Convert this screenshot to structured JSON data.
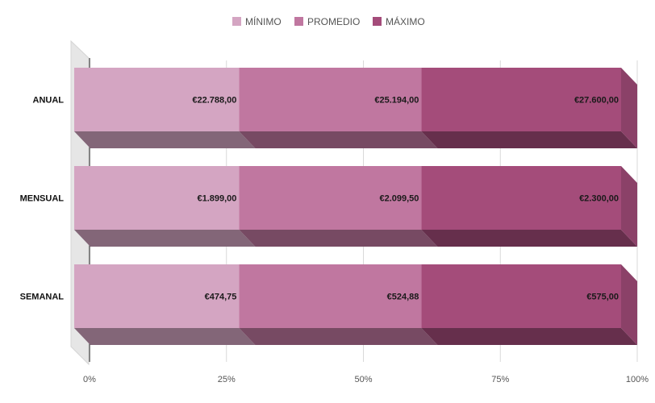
{
  "chart_data": {
    "type": "bar",
    "orientation": "horizontal",
    "stacked": "percent",
    "three_d": true,
    "categories": [
      "ANUAL",
      "MENSUAL",
      "SEMANAL"
    ],
    "series": [
      {
        "name": "MÍNIMO",
        "color": "#d4a5c2",
        "values": [
          22788.0,
          1899.0,
          474.75
        ],
        "labels": [
          "€22.788,00",
          "€1.899,00",
          "€474,75"
        ]
      },
      {
        "name": "PROMEDIO",
        "color": "#c077a0",
        "values": [
          25194.0,
          2099.5,
          524.88
        ],
        "labels": [
          "€25.194,00",
          "€2.099,50",
          "€524,88"
        ]
      },
      {
        "name": "MÁXIMO",
        "color": "#a44c7a",
        "values": [
          27600.0,
          2300.0,
          575.0
        ],
        "labels": [
          "€27.600,00",
          "€2.300,00",
          "€575,00"
        ]
      }
    ],
    "x_ticks": [
      "0%",
      "25%",
      "50%",
      "75%",
      "100%"
    ],
    "xlim": [
      0,
      100
    ],
    "legend_position": "top",
    "grid": true
  }
}
